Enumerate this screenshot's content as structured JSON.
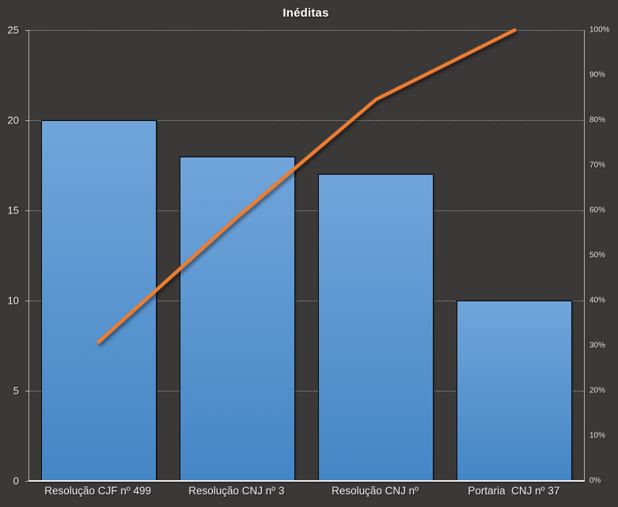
{
  "title": "Inéditas",
  "colors": {
    "background": "#3B3838",
    "bar_gradient_top": "#71A5DA",
    "bar_gradient_bottom": "#4486C6",
    "bar_border": "#0A0A0A",
    "line": "#ED7D31",
    "gridline": "#D9D9D9",
    "axis_line": "#D6D6D6",
    "text": "#F2F2F2"
  },
  "chart_data": {
    "type": "bar",
    "subtype": "pareto-combo",
    "title": "Inéditas",
    "legend_position": "none",
    "grid": "dotted-horizontal",
    "categories": [
      "Resolução CJF nº 499",
      "Resolução CNJ nº 3",
      "Resolução CNJ nº",
      "Portaria  CNJ nº 37"
    ],
    "series": [
      {
        "name": "bar-series",
        "type": "bar",
        "axis": "left",
        "values": [
          20,
          18,
          17,
          10
        ]
      },
      {
        "name": "cumulative-percent-line",
        "type": "line",
        "axis": "right",
        "values_percent": [
          30.8,
          58.5,
          84.6,
          100
        ]
      }
    ],
    "left_axis": {
      "min": 0,
      "max": 25,
      "tick_interval": 5,
      "tick_labels": [
        "25",
        "20",
        "15",
        "10",
        "5",
        "0"
      ]
    },
    "right_axis": {
      "min": 0,
      "max": 100,
      "tick_interval": 10,
      "tick_labels": [
        "100%",
        "90%",
        "80%",
        "70%",
        "60%",
        "50%",
        "40%",
        "30%",
        "20%",
        "10%",
        "0%"
      ]
    }
  }
}
